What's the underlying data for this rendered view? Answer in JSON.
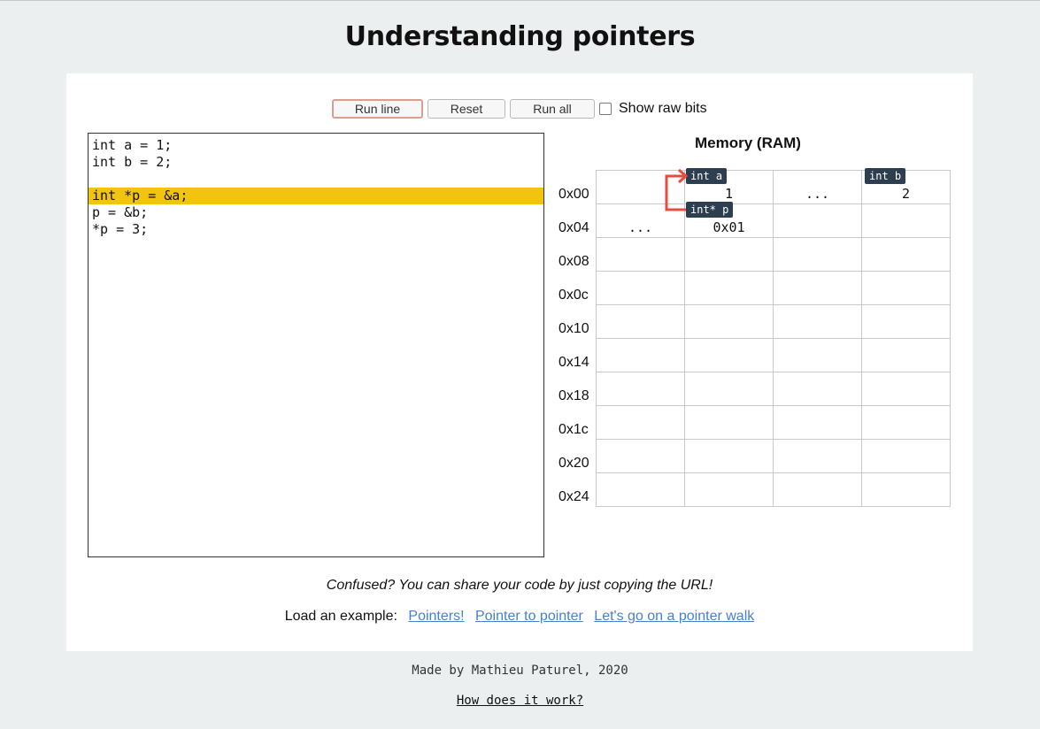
{
  "page": {
    "title": "Understanding pointers"
  },
  "toolbar": {
    "run_line": "Run line",
    "reset": "Reset",
    "run_all": "Run all",
    "show_raw_bits": "Show raw bits"
  },
  "editor": {
    "lines": [
      "int a = 1;",
      "int b = 2;",
      "",
      "int *p = &a;",
      "p = &b;",
      "*p = 3;"
    ],
    "highlighted_line": 4
  },
  "memory": {
    "title": "Memory (RAM)",
    "addresses": [
      "0x00",
      "0x04",
      "0x08",
      "0x0c",
      "0x10",
      "0x14",
      "0x18",
      "0x1c",
      "0x20",
      "0x24"
    ],
    "cells": {
      "r0c1": "1",
      "r0c2": "...",
      "r0c3": "2",
      "r1c0": "...",
      "r1c1": "0x01"
    },
    "tags": {
      "a": "int a",
      "b": "int b",
      "p": "int* p"
    },
    "arrow_color": "#e74c3c",
    "tag_color": "#2c3e50"
  },
  "note": "Confused? You can share your code by just copying the URL!",
  "examples": {
    "label": "Load an example:",
    "links": [
      "Pointers!",
      "Pointer to pointer",
      "Let's go on a pointer walk"
    ]
  },
  "footer": {
    "credit": "Made by Mathieu Paturel, 2020",
    "how": "How does it work?"
  },
  "colors": {
    "highlight": "#f1c40f",
    "link": "#4a7ecf",
    "background": "#ebeff0"
  }
}
